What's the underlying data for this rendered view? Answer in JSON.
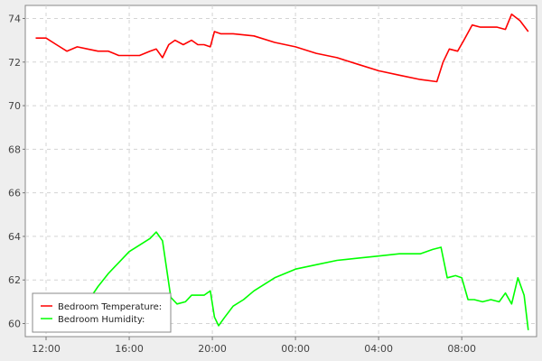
{
  "chart_data": {
    "type": "line",
    "title": "",
    "xlabel": "",
    "ylabel": "",
    "x_ticks": [
      "12:00",
      "16:00",
      "20:00",
      "00:00",
      "04:00",
      "08:00"
    ],
    "x_tick_hours": [
      12,
      16,
      20,
      24,
      28,
      32
    ],
    "xlim_hours": [
      11.0,
      35.6
    ],
    "y_ticks": [
      60,
      62,
      64,
      66,
      68,
      70,
      72,
      74
    ],
    "ylim": [
      59.4,
      74.6
    ],
    "grid": true,
    "legend_position": "bottom-left",
    "series": [
      {
        "name": "Bedroom Temperature:",
        "color": "#ff0000",
        "x_hours": [
          11.5,
          12.0,
          12.5,
          13.0,
          13.5,
          14.0,
          14.5,
          15.0,
          15.5,
          16.0,
          16.5,
          17.0,
          17.3,
          17.6,
          17.9,
          18.2,
          18.6,
          19.0,
          19.3,
          19.6,
          19.9,
          20.1,
          20.4,
          21.0,
          22.0,
          23.0,
          24.0,
          25.0,
          26.0,
          27.0,
          28.0,
          29.0,
          30.0,
          30.8,
          31.1,
          31.4,
          31.8,
          32.1,
          32.5,
          32.9,
          33.3,
          33.7,
          34.1,
          34.4,
          34.8,
          35.2
        ],
        "values": [
          73.1,
          73.1,
          72.8,
          72.5,
          72.7,
          72.6,
          72.5,
          72.5,
          72.3,
          72.3,
          72.3,
          72.5,
          72.6,
          72.2,
          72.8,
          73.0,
          72.8,
          73.0,
          72.8,
          72.8,
          72.7,
          73.4,
          73.3,
          73.3,
          73.2,
          72.9,
          72.7,
          72.4,
          72.2,
          71.9,
          71.6,
          71.4,
          71.2,
          71.1,
          72.0,
          72.6,
          72.5,
          73.0,
          73.7,
          73.6,
          73.6,
          73.6,
          73.5,
          74.2,
          73.9,
          73.4
        ]
      },
      {
        "name": "Bedroom Humidity:",
        "color": "#00ff00",
        "x_hours": [
          11.5,
          12.0,
          12.5,
          13.0,
          13.5,
          14.0,
          14.5,
          15.0,
          15.5,
          16.0,
          16.5,
          17.0,
          17.3,
          17.6,
          18.0,
          18.3,
          18.7,
          19.0,
          19.3,
          19.6,
          19.9,
          20.1,
          20.3,
          20.6,
          21.0,
          21.5,
          22.0,
          22.5,
          23.0,
          23.5,
          24.0,
          25.0,
          26.0,
          27.0,
          28.0,
          29.0,
          30.0,
          30.6,
          31.0,
          31.3,
          31.7,
          32.0,
          32.3,
          32.6,
          33.0,
          33.4,
          33.8,
          34.1,
          34.4,
          34.7,
          35.0,
          35.2
        ],
        "values": [
          59.9,
          59.8,
          59.9,
          59.9,
          60.2,
          61.0,
          61.7,
          62.3,
          62.8,
          63.3,
          63.6,
          63.9,
          64.2,
          63.8,
          61.2,
          60.9,
          61.0,
          61.3,
          61.3,
          61.3,
          61.5,
          60.3,
          59.9,
          60.3,
          60.8,
          61.1,
          61.5,
          61.8,
          62.1,
          62.3,
          62.5,
          62.7,
          62.9,
          63.0,
          63.1,
          63.2,
          63.2,
          63.4,
          63.5,
          62.1,
          62.2,
          62.1,
          61.1,
          61.1,
          61.0,
          61.1,
          61.0,
          61.4,
          60.9,
          62.1,
          61.3,
          59.7
        ]
      }
    ]
  }
}
